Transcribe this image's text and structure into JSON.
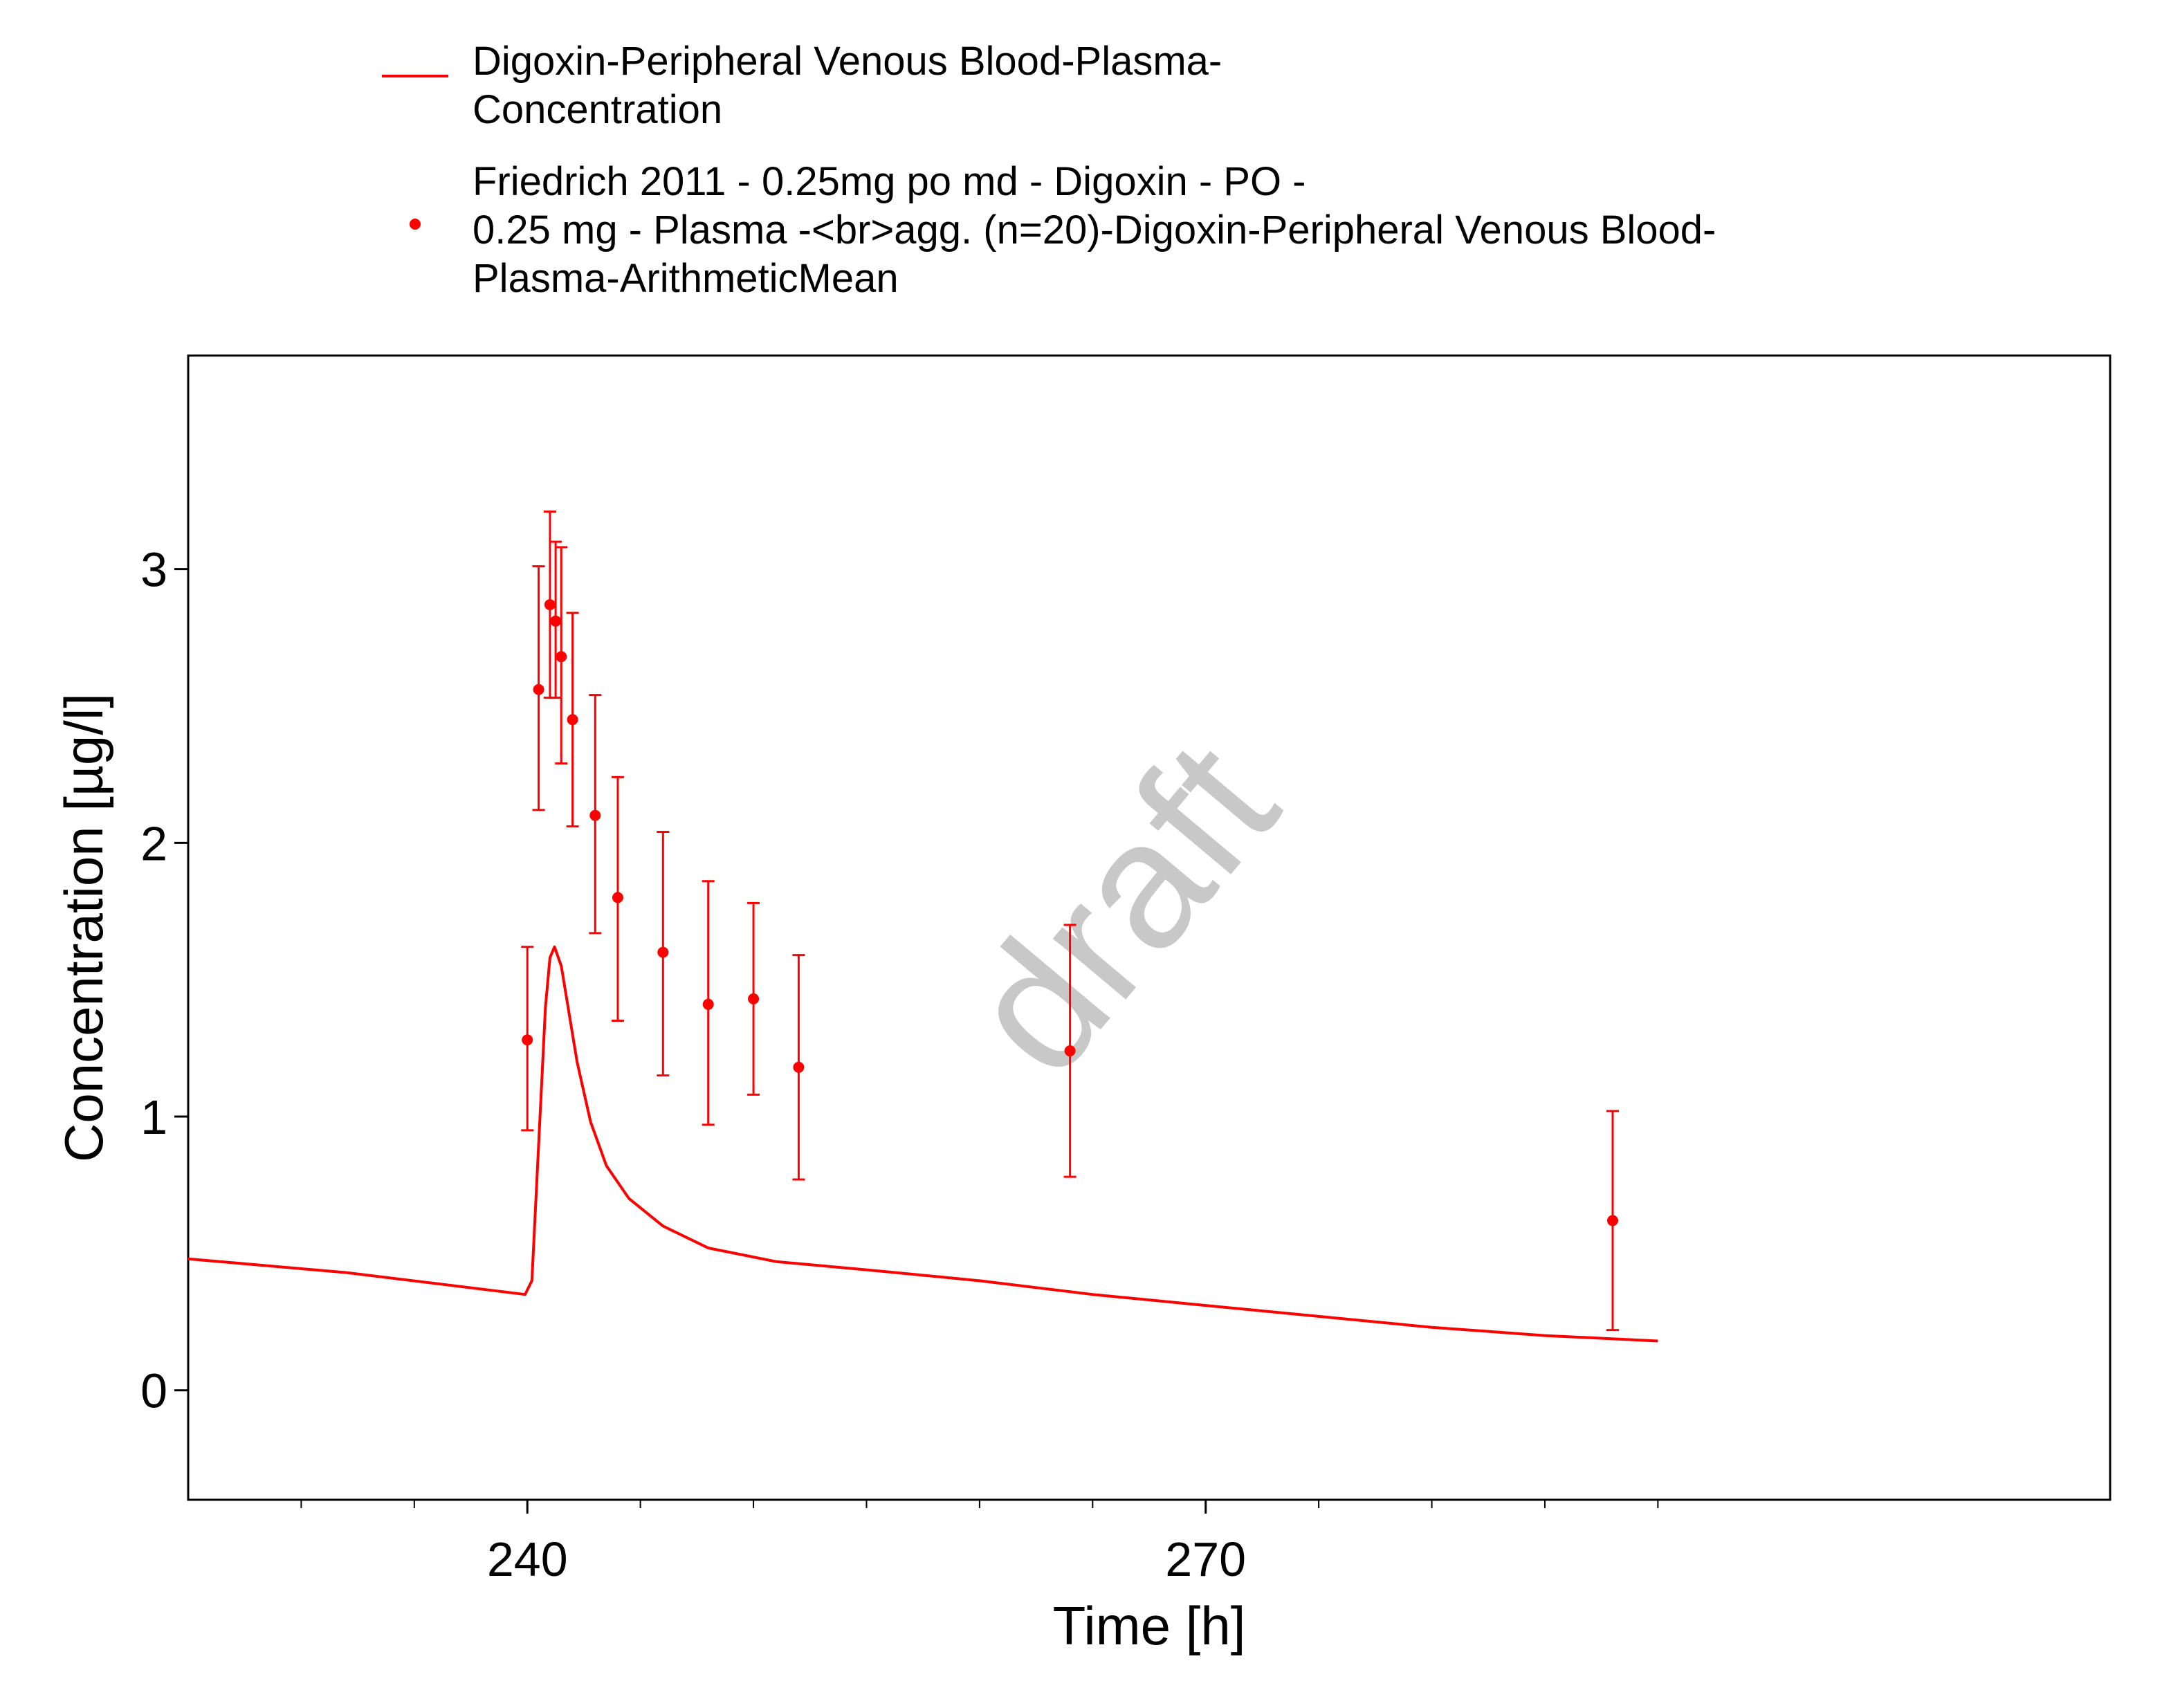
{
  "chart_data": {
    "type": "scatter",
    "xlabel": "Time [h]",
    "ylabel": "Concentration [µg/l]",
    "xlim": [
      225,
      310
    ],
    "ylim": [
      -0.4,
      3.78
    ],
    "x_ticks": [
      240,
      270
    ],
    "x_tick_labels": [
      "240",
      "270"
    ],
    "x_minor_ticks": [
      230,
      235,
      245,
      250,
      255,
      260,
      265,
      275,
      280,
      285,
      290
    ],
    "y_ticks": [
      0,
      1,
      2,
      3
    ],
    "y_tick_labels": [
      "0",
      "1",
      "2",
      "3"
    ],
    "grid": false,
    "legend_position": "top",
    "watermark": "draft",
    "colors": {
      "series": "#ff0000",
      "watermark": "#c8c8c8",
      "axis": "#000000"
    },
    "series": [
      {
        "name": "Digoxin-Peripheral Venous Blood-Plasma-Concentration",
        "legend_lines": [
          "Digoxin-Peripheral Venous Blood-Plasma-",
          "Concentration"
        ],
        "type": "line",
        "points": [
          [
            225,
            0.48
          ],
          [
            232,
            0.43
          ],
          [
            239.9,
            0.35
          ],
          [
            240.2,
            0.4
          ],
          [
            240.5,
            0.9
          ],
          [
            240.8,
            1.4
          ],
          [
            241,
            1.58
          ],
          [
            241.2,
            1.62
          ],
          [
            241.5,
            1.55
          ],
          [
            241.8,
            1.4
          ],
          [
            242.2,
            1.2
          ],
          [
            242.8,
            0.98
          ],
          [
            243.5,
            0.82
          ],
          [
            244.5,
            0.7
          ],
          [
            246,
            0.6
          ],
          [
            248,
            0.52
          ],
          [
            251,
            0.47
          ],
          [
            255,
            0.44
          ],
          [
            260,
            0.4
          ],
          [
            265,
            0.35
          ],
          [
            270,
            0.31
          ],
          [
            275,
            0.27
          ],
          [
            280,
            0.23
          ],
          [
            285,
            0.2
          ],
          [
            290,
            0.18
          ]
        ]
      },
      {
        "name": "Friedrich 2011 - 0.25mg po md - Digoxin - PO - 0.25 mg - Plasma -<br>agg. (n=20)-Digoxin-Peripheral Venous Blood-Plasma-ArithmeticMean",
        "legend_lines": [
          "Friedrich 2011 - 0.25mg po md - Digoxin - PO -",
          "0.25 mg - Plasma -<br>agg. (n=20)-Digoxin-Peripheral Venous Blood-",
          "Plasma-ArithmeticMean"
        ],
        "type": "scatter",
        "points": [
          {
            "x": 240.0,
            "y": 1.28,
            "lo": 0.95,
            "hi": 1.62
          },
          {
            "x": 240.5,
            "y": 2.56,
            "lo": 2.12,
            "hi": 3.01
          },
          {
            "x": 241.0,
            "y": 2.87,
            "lo": 2.53,
            "hi": 3.21
          },
          {
            "x": 241.25,
            "y": 2.81,
            "lo": 2.53,
            "hi": 3.1
          },
          {
            "x": 241.5,
            "y": 2.68,
            "lo": 2.29,
            "hi": 3.08
          },
          {
            "x": 242.0,
            "y": 2.45,
            "lo": 2.06,
            "hi": 2.84
          },
          {
            "x": 243.0,
            "y": 2.1,
            "lo": 1.67,
            "hi": 2.54
          },
          {
            "x": 244.0,
            "y": 1.8,
            "lo": 1.35,
            "hi": 2.24
          },
          {
            "x": 246.0,
            "y": 1.6,
            "lo": 1.15,
            "hi": 2.04
          },
          {
            "x": 248.0,
            "y": 1.41,
            "lo": 0.97,
            "hi": 1.86
          },
          {
            "x": 250.0,
            "y": 1.43,
            "lo": 1.08,
            "hi": 1.78
          },
          {
            "x": 252.0,
            "y": 1.18,
            "lo": 0.77,
            "hi": 1.59
          },
          {
            "x": 264.0,
            "y": 1.24,
            "lo": 0.78,
            "hi": 1.7
          },
          {
            "x": 288.0,
            "y": 0.62,
            "lo": 0.22,
            "hi": 1.02
          }
        ]
      }
    ]
  }
}
